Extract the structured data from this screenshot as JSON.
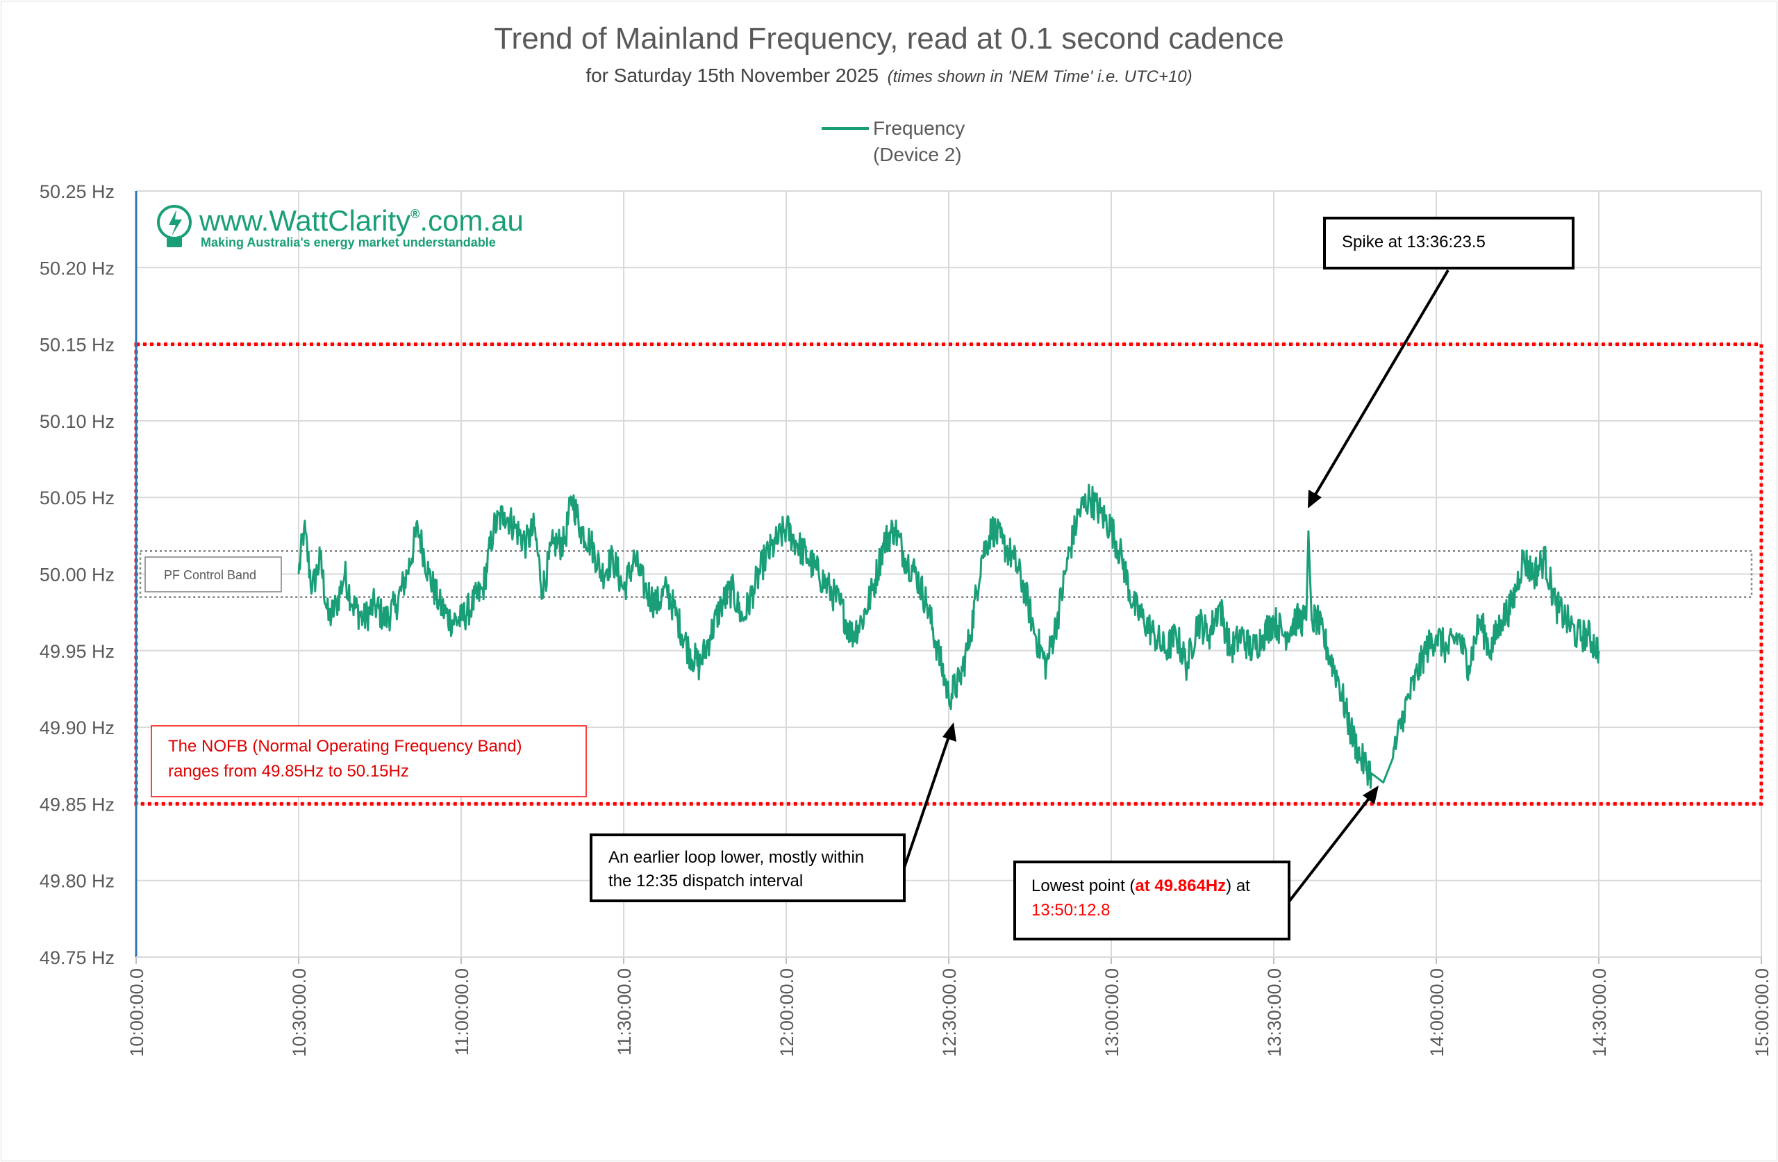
{
  "chart_data": {
    "type": "line",
    "title": "Trend of Mainland Frequency, read at 0.1 second cadence",
    "subtitle": "for Saturday 15th November 2025",
    "subtitle_note": "(times shown in 'NEM Time' i.e. UTC+10)",
    "legend": {
      "position": "top-center",
      "label_line1": "Frequency",
      "label_line2": "(Device 2)"
    },
    "series_color": "#1a9e78",
    "xlim": [
      "10:00:00.0",
      "15:00:00.0"
    ],
    "x_tick_labels": [
      "10:00:00.0",
      "10:30:00.0",
      "11:00:00.0",
      "11:30:00.0",
      "12:00:00.0",
      "12:30:00.0",
      "13:00:00.0",
      "13:30:00.0",
      "14:00:00.0",
      "14:30:00.0",
      "15:00:00.0"
    ],
    "ylim": [
      49.75,
      50.25
    ],
    "y_tick_labels": [
      "50.25 Hz",
      "50.20 Hz",
      "50.15 Hz",
      "50.10 Hz",
      "50.05 Hz",
      "50.00 Hz",
      "49.95 Hz",
      "49.90 Hz",
      "49.85 Hz",
      "49.80 Hz",
      "49.75 Hz"
    ],
    "grid": true,
    "series": [
      {
        "name": "Frequency (Device 2)",
        "points": [
          [
            "10:30:00.0",
            50.0
          ],
          [
            "10:31:00.0",
            50.03
          ],
          [
            "10:32:30.0",
            49.99
          ],
          [
            "10:34:00.0",
            50.01
          ],
          [
            "10:35:30.0",
            49.97
          ],
          [
            "10:37:00.0",
            49.98
          ],
          [
            "10:38:30.0",
            50.0
          ],
          [
            "10:40:00.0",
            49.98
          ],
          [
            "10:42:00.0",
            49.97
          ],
          [
            "10:44:00.0",
            49.98
          ],
          [
            "10:46:00.0",
            49.97
          ],
          [
            "10:48:00.0",
            49.98
          ],
          [
            "10:50:00.0",
            50.0
          ],
          [
            "10:52:00.0",
            50.03
          ],
          [
            "10:54:00.0",
            50.0
          ],
          [
            "10:56:00.0",
            49.98
          ],
          [
            "10:58:00.0",
            49.97
          ],
          [
            "11:00:00.0",
            49.97
          ],
          [
            "11:02:00.0",
            49.98
          ],
          [
            "11:04:00.0",
            49.99
          ],
          [
            "11:06:00.0",
            50.03
          ],
          [
            "11:08:00.0",
            50.04
          ],
          [
            "11:10:00.0",
            50.03
          ],
          [
            "11:12:00.0",
            50.02
          ],
          [
            "11:13:30.0",
            50.03
          ],
          [
            "11:15:00.0",
            49.99
          ],
          [
            "11:17:00.0",
            50.02
          ],
          [
            "11:19:00.0",
            50.02
          ],
          [
            "11:20:30.0",
            50.05
          ],
          [
            "11:22:00.0",
            50.03
          ],
          [
            "11:24:00.0",
            50.02
          ],
          [
            "11:26:00.0",
            50.0
          ],
          [
            "11:28:00.0",
            50.01
          ],
          [
            "11:30:00.0",
            49.99
          ],
          [
            "11:32:00.0",
            50.01
          ],
          [
            "11:34:00.0",
            49.99
          ],
          [
            "11:36:00.0",
            49.98
          ],
          [
            "11:38:00.0",
            49.99
          ],
          [
            "11:40:00.0",
            49.97
          ],
          [
            "11:42:00.0",
            49.95
          ],
          [
            "11:44:00.0",
            49.94
          ],
          [
            "11:46:00.0",
            49.96
          ],
          [
            "11:48:00.0",
            49.98
          ],
          [
            "11:50:00.0",
            49.99
          ],
          [
            "11:52:00.0",
            49.97
          ],
          [
            "11:54:00.0",
            49.99
          ],
          [
            "11:56:00.0",
            50.01
          ],
          [
            "11:58:00.0",
            50.02
          ],
          [
            "12:00:00.0",
            50.03
          ],
          [
            "12:02:00.0",
            50.02
          ],
          [
            "12:04:00.0",
            50.01
          ],
          [
            "12:06:00.0",
            50.0
          ],
          [
            "12:08:00.0",
            49.99
          ],
          [
            "12:10:00.0",
            49.98
          ],
          [
            "12:12:00.0",
            49.96
          ],
          [
            "12:14:00.0",
            49.97
          ],
          [
            "12:16:00.0",
            49.99
          ],
          [
            "12:18:00.0",
            50.02
          ],
          [
            "12:20:00.0",
            50.03
          ],
          [
            "12:22:00.0",
            50.01
          ],
          [
            "12:24:00.0",
            50.0
          ],
          [
            "12:26:00.0",
            49.98
          ],
          [
            "12:28:00.0",
            49.95
          ],
          [
            "12:30:00.0",
            49.92
          ],
          [
            "12:32:00.0",
            49.93
          ],
          [
            "12:34:00.0",
            49.96
          ],
          [
            "12:36:00.0",
            50.01
          ],
          [
            "12:38:00.0",
            50.03
          ],
          [
            "12:40:00.0",
            50.02
          ],
          [
            "12:42:00.0",
            50.01
          ],
          [
            "12:44:00.0",
            49.99
          ],
          [
            "12:46:00.0",
            49.96
          ],
          [
            "12:48:00.0",
            49.94
          ],
          [
            "12:50:00.0",
            49.97
          ],
          [
            "12:52:00.0",
            50.01
          ],
          [
            "12:54:00.0",
            50.04
          ],
          [
            "12:56:00.0",
            50.05
          ],
          [
            "12:58:00.0",
            50.04
          ],
          [
            "13:00:00.0",
            50.03
          ],
          [
            "13:02:00.0",
            50.01
          ],
          [
            "13:04:00.0",
            49.98
          ],
          [
            "13:06:00.0",
            49.97
          ],
          [
            "13:08:00.0",
            49.96
          ],
          [
            "13:10:00.0",
            49.95
          ],
          [
            "13:12:00.0",
            49.96
          ],
          [
            "13:14:00.0",
            49.94
          ],
          [
            "13:16:00.0",
            49.97
          ],
          [
            "13:18:00.0",
            49.96
          ],
          [
            "13:20:00.0",
            49.98
          ],
          [
            "13:22:00.0",
            49.95
          ],
          [
            "13:24:00.0",
            49.96
          ],
          [
            "13:26:00.0",
            49.95
          ],
          [
            "13:28:00.0",
            49.96
          ],
          [
            "13:30:00.0",
            49.97
          ],
          [
            "13:32:00.0",
            49.96
          ],
          [
            "13:34:00.0",
            49.97
          ],
          [
            "13:36:00.0",
            49.97
          ],
          [
            "13:36:23.5",
            50.028
          ],
          [
            "13:37:00.0",
            49.97
          ],
          [
            "13:38:00.0",
            49.97
          ],
          [
            "13:40:00.0",
            49.95
          ],
          [
            "13:42:00.0",
            49.93
          ],
          [
            "13:44:00.0",
            49.9
          ],
          [
            "13:46:00.0",
            49.88
          ],
          [
            "13:48:00.0",
            49.87
          ],
          [
            "13:50:12.8",
            49.864
          ],
          [
            "13:52:00.0",
            49.88
          ],
          [
            "13:54:00.0",
            49.91
          ],
          [
            "13:56:00.0",
            49.93
          ],
          [
            "13:58:00.0",
            49.95
          ],
          [
            "14:00:00.0",
            49.96
          ],
          [
            "14:02:00.0",
            49.95
          ],
          [
            "14:04:00.0",
            49.96
          ],
          [
            "14:06:00.0",
            49.94
          ],
          [
            "14:08:00.0",
            49.97
          ],
          [
            "14:10:00.0",
            49.95
          ],
          [
            "14:12:00.0",
            49.97
          ],
          [
            "14:14:00.0",
            49.98
          ],
          [
            "14:16:00.0",
            50.01
          ],
          [
            "14:18:00.0",
            50.0
          ],
          [
            "14:20:00.0",
            50.01
          ],
          [
            "14:22:00.0",
            49.98
          ],
          [
            "14:24:00.0",
            49.97
          ],
          [
            "14:26:00.0",
            49.96
          ],
          [
            "14:28:00.0",
            49.96
          ],
          [
            "14:30:00.0",
            49.95
          ]
        ]
      }
    ],
    "bands": {
      "nofb": {
        "low": 49.85,
        "high": 50.15,
        "color": "#ff0000"
      },
      "pf_control": {
        "low": 49.985,
        "high": 50.015,
        "color": "#7f7f7f"
      }
    },
    "annotations": {
      "spike": {
        "text": "Spike at 13:36:23.5",
        "x": "13:36:23.5",
        "y": 50.028
      },
      "earlier_loop": {
        "line1": "An earlier loop lower, mostly within",
        "line2": "the 12:35 dispatch interval",
        "x": "12:30:00.0",
        "y": 49.915
      },
      "lowest": {
        "line1_pre": "Lowest point (",
        "line1_bold": "at 49.864Hz",
        "line1_post": ") at",
        "line2": "13:50:12.8",
        "x": "13:50:12.8",
        "y": 49.864
      },
      "nofb_note": {
        "line1": "The NOFB  (Normal Operating Frequency Band)",
        "line2": "ranges from 49.85Hz to 50.15Hz"
      },
      "pf_note": {
        "text": "PF Control Band"
      }
    }
  },
  "logo": {
    "main": "www.WattClarity",
    "reg": "®",
    "suffix": ".com.au",
    "tagline": "Making Australia's energy market understandable"
  }
}
